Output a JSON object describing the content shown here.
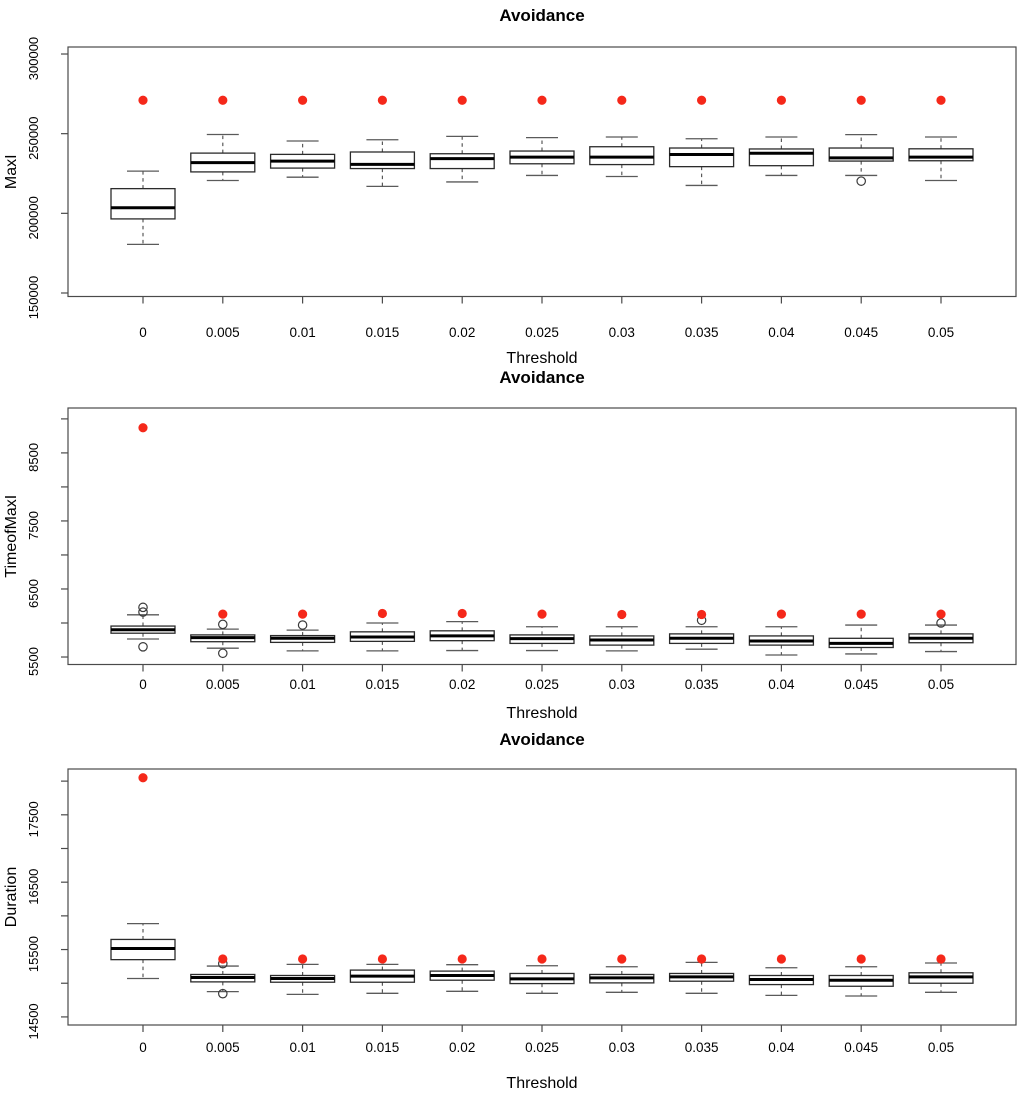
{
  "figure": {
    "background": "#ffffff",
    "red_marker_color": "#f5281a",
    "box_fill": "#ffffff",
    "box_stroke": "#2b2b2b",
    "whisker_stroke": "#5a5a5a",
    "border_stroke": "#4a4a4a"
  },
  "chart_data": [
    {
      "type": "boxplot",
      "title": "Avoidance",
      "xlabel": "Threshold",
      "ylabel": "MaxI",
      "categories": [
        "0",
        "0.005",
        "0.01",
        "0.015",
        "0.02",
        "0.025",
        "0.03",
        "0.035",
        "0.04",
        "0.045",
        "0.05"
      ],
      "ylim": [
        147800,
        304400
      ],
      "grid": false,
      "legend": "none",
      "yticks": [
        {
          "v": 150000,
          "l": "150000"
        },
        {
          "v": 200000,
          "l": "200000"
        },
        {
          "v": 250000,
          "l": "250000"
        },
        {
          "v": 300000,
          "l": "300000"
        }
      ],
      "boxes": [
        {
          "whisker_low": 180500,
          "q1": 196500,
          "median": 203500,
          "q3": 215500,
          "whisker_high": 226500,
          "outliers": [],
          "red_point": 271000
        },
        {
          "whisker_low": 220600,
          "q1": 226000,
          "median": 231800,
          "q3": 237800,
          "whisker_high": 249500,
          "outliers": [],
          "red_point": 271000
        },
        {
          "whisker_low": 222700,
          "q1": 228400,
          "median": 232800,
          "q3": 237000,
          "whisker_high": 245400,
          "outliers": [],
          "red_point": 271000
        },
        {
          "whisker_low": 216900,
          "q1": 228100,
          "median": 230700,
          "q3": 238500,
          "whisker_high": 246200,
          "outliers": [],
          "red_point": 271000
        },
        {
          "whisker_low": 219700,
          "q1": 228100,
          "median": 234300,
          "q3": 237400,
          "whisker_high": 248300,
          "outliers": [],
          "red_point": 271000
        },
        {
          "whisker_low": 223800,
          "q1": 231100,
          "median": 235300,
          "q3": 239100,
          "whisker_high": 247500,
          "outliers": [],
          "red_point": 271000
        },
        {
          "whisker_low": 223100,
          "q1": 230600,
          "median": 235300,
          "q3": 241800,
          "whisker_high": 247900,
          "outliers": [],
          "red_point": 271000
        },
        {
          "whisker_low": 217500,
          "q1": 229300,
          "median": 236900,
          "q3": 241000,
          "whisker_high": 246800,
          "outliers": [],
          "red_point": 271000
        },
        {
          "whisker_low": 223800,
          "q1": 229900,
          "median": 237700,
          "q3": 240400,
          "whisker_high": 247900,
          "outliers": [],
          "red_point": 271000
        },
        {
          "whisker_low": 223800,
          "q1": 232800,
          "median": 234800,
          "q3": 241000,
          "whisker_high": 249400,
          "outliers": [
            220200
          ],
          "red_point": 271000
        },
        {
          "whisker_low": 220600,
          "q1": 233000,
          "median": 235300,
          "q3": 240500,
          "whisker_high": 247900,
          "outliers": [],
          "red_point": 271000
        }
      ]
    },
    {
      "type": "boxplot",
      "title": "Avoidance",
      "xlabel": "Threshold",
      "ylabel": "TimeofMaxI",
      "categories": [
        "0",
        "0.005",
        "0.01",
        "0.015",
        "0.02",
        "0.025",
        "0.03",
        "0.035",
        "0.04",
        "0.045",
        "0.05"
      ],
      "ylim": [
        5390,
        9160
      ],
      "grid": false,
      "legend": "none",
      "yticks": [
        {
          "v": 5500,
          "l": "5500"
        },
        {
          "v": 6000,
          "l": ""
        },
        {
          "v": 6500,
          "l": "6500"
        },
        {
          "v": 7000,
          "l": ""
        },
        {
          "v": 7500,
          "l": "7500"
        },
        {
          "v": 8000,
          "l": ""
        },
        {
          "v": 8500,
          "l": "8500"
        },
        {
          "v": 9000,
          "l": ""
        }
      ],
      "boxes": [
        {
          "whisker_low": 5765,
          "q1": 5850,
          "median": 5900,
          "q3": 5955,
          "whisker_high": 6120,
          "outliers": [
            6160,
            6230,
            5650
          ],
          "red_point": 8870
        },
        {
          "whisker_low": 5630,
          "q1": 5725,
          "median": 5785,
          "q3": 5825,
          "whisker_high": 5910,
          "outliers": [
            5980,
            5555
          ],
          "red_point": 6130
        },
        {
          "whisker_low": 5590,
          "q1": 5715,
          "median": 5775,
          "q3": 5815,
          "whisker_high": 5895,
          "outliers": [
            5970
          ],
          "red_point": 6130
        },
        {
          "whisker_low": 5590,
          "q1": 5730,
          "median": 5795,
          "q3": 5870,
          "whisker_high": 6000,
          "outliers": [],
          "red_point": 6140
        },
        {
          "whisker_low": 5595,
          "q1": 5740,
          "median": 5810,
          "q3": 5885,
          "whisker_high": 6020,
          "outliers": [],
          "red_point": 6140
        },
        {
          "whisker_low": 5595,
          "q1": 5700,
          "median": 5770,
          "q3": 5825,
          "whisker_high": 5945,
          "outliers": [],
          "red_point": 6130
        },
        {
          "whisker_low": 5590,
          "q1": 5675,
          "median": 5750,
          "q3": 5810,
          "whisker_high": 5945,
          "outliers": [],
          "red_point": 6125
        },
        {
          "whisker_low": 5615,
          "q1": 5700,
          "median": 5775,
          "q3": 5840,
          "whisker_high": 5945,
          "outliers": [
            6040
          ],
          "red_point": 6125
        },
        {
          "whisker_low": 5530,
          "q1": 5675,
          "median": 5735,
          "q3": 5810,
          "whisker_high": 5945,
          "outliers": [],
          "red_point": 6130
        },
        {
          "whisker_low": 5545,
          "q1": 5640,
          "median": 5700,
          "q3": 5775,
          "whisker_high": 5970,
          "outliers": [],
          "red_point": 6130
        },
        {
          "whisker_low": 5580,
          "q1": 5710,
          "median": 5775,
          "q3": 5840,
          "whisker_high": 5970,
          "outliers": [
            6000
          ],
          "red_point": 6130
        }
      ]
    },
    {
      "type": "boxplot",
      "title": "Avoidance",
      "xlabel": "Threshold",
      "ylabel": "Duration",
      "categories": [
        "0",
        "0.005",
        "0.01",
        "0.015",
        "0.02",
        "0.025",
        "0.03",
        "0.035",
        "0.04",
        "0.045",
        "0.05"
      ],
      "ylim": [
        14380,
        18180
      ],
      "grid": false,
      "legend": "none",
      "yticks": [
        {
          "v": 14500,
          "l": "14500"
        },
        {
          "v": 15000,
          "l": ""
        },
        {
          "v": 15500,
          "l": "15500"
        },
        {
          "v": 16000,
          "l": ""
        },
        {
          "v": 16500,
          "l": "16500"
        },
        {
          "v": 17000,
          "l": ""
        },
        {
          "v": 17500,
          "l": "17500"
        },
        {
          "v": 18000,
          "l": ""
        }
      ],
      "boxes": [
        {
          "whisker_low": 15070,
          "q1": 15350,
          "median": 15515,
          "q3": 15650,
          "whisker_high": 15885,
          "outliers": [],
          "red_point": 18050
        },
        {
          "whisker_low": 14875,
          "q1": 15020,
          "median": 15085,
          "q3": 15130,
          "whisker_high": 15255,
          "outliers": [
            15290,
            14845
          ],
          "red_point": 15360
        },
        {
          "whisker_low": 14835,
          "q1": 15015,
          "median": 15070,
          "q3": 15115,
          "whisker_high": 15280,
          "outliers": [],
          "red_point": 15360
        },
        {
          "whisker_low": 14850,
          "q1": 15015,
          "median": 15105,
          "q3": 15195,
          "whisker_high": 15280,
          "outliers": [],
          "red_point": 15360
        },
        {
          "whisker_low": 14880,
          "q1": 15045,
          "median": 15115,
          "q3": 15180,
          "whisker_high": 15275,
          "outliers": [],
          "red_point": 15360
        },
        {
          "whisker_low": 14850,
          "q1": 14995,
          "median": 15065,
          "q3": 15145,
          "whisker_high": 15260,
          "outliers": [],
          "red_point": 15360
        },
        {
          "whisker_low": 14865,
          "q1": 15005,
          "median": 15080,
          "q3": 15130,
          "whisker_high": 15245,
          "outliers": [],
          "red_point": 15360
        },
        {
          "whisker_low": 14850,
          "q1": 15030,
          "median": 15095,
          "q3": 15145,
          "whisker_high": 15310,
          "outliers": [],
          "red_point": 15360
        },
        {
          "whisker_low": 14820,
          "q1": 14980,
          "median": 15055,
          "q3": 15115,
          "whisker_high": 15230,
          "outliers": [],
          "red_point": 15360
        },
        {
          "whisker_low": 14810,
          "q1": 14955,
          "median": 15045,
          "q3": 15115,
          "whisker_high": 15245,
          "outliers": [],
          "red_point": 15360
        },
        {
          "whisker_low": 14865,
          "q1": 15000,
          "median": 15095,
          "q3": 15155,
          "whisker_high": 15300,
          "outliers": [],
          "red_point": 15360
        }
      ]
    }
  ]
}
